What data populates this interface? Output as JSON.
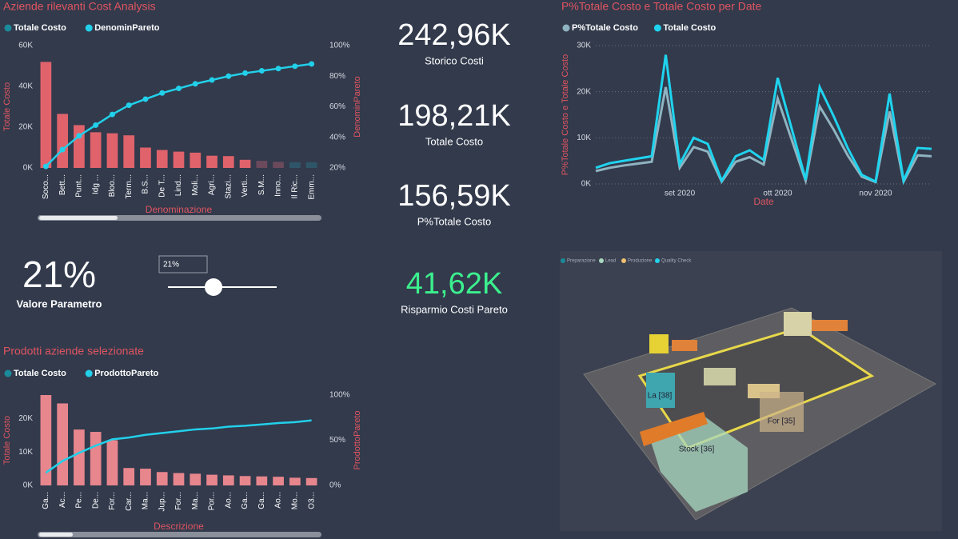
{
  "chart_data": [
    {
      "type": "combo",
      "title": "Aziende rilevanti Cost Analysis",
      "categories": [
        "Soco...",
        "Bett...",
        "Punt...",
        "Idg ...",
        "Bloo...",
        "Term...",
        "B.S...",
        "De T...",
        "Lind...",
        "Moli...",
        "Agri...",
        "Stazi...",
        "Verti...",
        "S.M...",
        "Inno...",
        "Il Ric...",
        "Emm..."
      ],
      "series": [
        {
          "name": "Totale Costo",
          "type": "bar",
          "color": "#1b8a9b",
          "bar_colors": [
            "#e0636b",
            "#e0636b",
            "#e0636b",
            "#e0636b",
            "#e0636b",
            "#e0636b",
            "#e0636b",
            "#e0636b",
            "#e0636b",
            "#e0636b",
            "#e0636b",
            "#e0636b",
            "#e0636b",
            "#6b4a5c",
            "#6b4a5c",
            "#2f5668",
            "#2f5668"
          ],
          "values": [
            52000,
            26500,
            21000,
            17500,
            17000,
            16000,
            10000,
            8800,
            8000,
            7500,
            6000,
            5800,
            4000,
            3500,
            3000,
            2800,
            2800
          ]
        },
        {
          "name": "DenominPareto",
          "type": "line",
          "axis": "y2",
          "color": "#22d0ea",
          "values": [
            21,
            32,
            41,
            48,
            55,
            61,
            65,
            69,
            72,
            75,
            77.5,
            80,
            82,
            83.5,
            85,
            86.5,
            88
          ]
        }
      ],
      "ylim": [
        0,
        60000
      ],
      "yticks": [
        {
          "value": 0,
          "label": "0K"
        },
        {
          "value": 20000,
          "label": "20K"
        },
        {
          "value": 40000,
          "label": "40K"
        },
        {
          "value": 60000,
          "label": "60K"
        }
      ],
      "y2lim": [
        20,
        100
      ],
      "y2ticks": [
        {
          "value": 20,
          "label": "20%"
        },
        {
          "value": 40,
          "label": "40%"
        },
        {
          "value": 60,
          "label": "60%"
        },
        {
          "value": 80,
          "label": "80%"
        },
        {
          "value": 100,
          "label": "100%"
        }
      ],
      "xlabel": "Denominazione",
      "ylabel": "Totale Costo",
      "y2label": "DenominPareto",
      "grid": false,
      "markers": true
    },
    {
      "type": "line",
      "title": "P%Totale Costo e Totale Costo per Date",
      "categories": [
        null,
        null,
        null,
        null,
        null,
        null,
        "set 2020",
        null,
        null,
        null,
        null,
        null,
        null,
        "ott 2020",
        null,
        null,
        null,
        null,
        null,
        null,
        "nov 2020",
        null,
        null,
        null,
        null
      ],
      "series": [
        {
          "name": "P%Totale Costo",
          "color": "#8fb3c0",
          "values": [
            2800,
            3500,
            4000,
            4400,
            4800,
            21000,
            3500,
            8000,
            7000,
            500,
            4800,
            5800,
            4200,
            18500,
            9600,
            700,
            16800,
            11800,
            6200,
            1600,
            400,
            15700,
            500,
            6200,
            6000
          ]
        },
        {
          "name": "Totale Costo",
          "color": "#1fd3ee",
          "values": [
            3500,
            4500,
            5000,
            5500,
            6000,
            28000,
            4300,
            10000,
            8700,
            700,
            6000,
            7300,
            5200,
            23000,
            12000,
            900,
            21000,
            14700,
            7800,
            2000,
            500,
            19600,
            700,
            7800,
            7600
          ]
        }
      ],
      "ylim": [
        0,
        30000
      ],
      "yticks": [
        {
          "value": 0,
          "label": "0K"
        },
        {
          "value": 10000,
          "label": "10K"
        },
        {
          "value": 20000,
          "label": "20K"
        },
        {
          "value": 30000,
          "label": "30K"
        }
      ],
      "xlabel": "Date",
      "ylabel": "P%Totale Costo e Totale Costo",
      "grid": true,
      "markers": false
    },
    {
      "type": "combo",
      "title": "Prodotti aziende selezionate",
      "categories": [
        "Ga...",
        "Ac...",
        "Pe...",
        "De...",
        "For...",
        "Car...",
        "Ma...",
        "Jup...",
        "For...",
        "Ma...",
        "Por...",
        "Ao...",
        "Ga...",
        "Ga...",
        "Ao...",
        "Mo...",
        "O3..."
      ],
      "series": [
        {
          "name": "Totale Costo",
          "type": "bar",
          "color": "#1b8a9b",
          "bar_colors": [
            "#e8868e",
            "#e8868e",
            "#e8868e",
            "#e8868e",
            "#e8868e",
            "#e8868e",
            "#e8868e",
            "#e8868e",
            "#e8868e",
            "#e8868e",
            "#e8868e",
            "#e8868e",
            "#e8868e",
            "#e8868e",
            "#e8868e",
            "#e8868e",
            "#e8868e"
          ],
          "values": [
            27000,
            24500,
            16700,
            16000,
            13500,
            5200,
            5000,
            4000,
            3700,
            3500,
            3200,
            3000,
            2800,
            2700,
            2600,
            2300,
            2200
          ]
        },
        {
          "name": "ProdottoPareto",
          "type": "line",
          "axis": "y2",
          "color": "#22d0ea",
          "values": [
            14,
            27,
            36,
            44,
            51,
            53,
            56,
            58,
            60,
            62,
            63,
            65,
            66,
            67.5,
            69,
            70,
            72
          ]
        }
      ],
      "ylim": [
        0,
        27000
      ],
      "yticks": [
        {
          "value": 0,
          "label": "0K"
        },
        {
          "value": 10000,
          "label": "10K"
        },
        {
          "value": 20000,
          "label": "20K"
        }
      ],
      "y2lim": [
        0,
        100
      ],
      "y2ticks": [
        {
          "value": 0,
          "label": "0%"
        },
        {
          "value": 50,
          "label": "50%"
        },
        {
          "value": 100,
          "label": "100%"
        }
      ],
      "xlabel": "Descrizione",
      "ylabel": "Totale Costo",
      "y2label": "ProdottoPareto",
      "grid": false,
      "markers": false
    }
  ],
  "kpis": [
    {
      "value": "242,96K",
      "label": "Storico Costi",
      "color": "#ffffff"
    },
    {
      "value": "198,21K",
      "label": "Totale Costo",
      "color": "#ffffff"
    },
    {
      "value": "156,59K",
      "label": "P%Totale Costo",
      "color": "#ffffff"
    },
    {
      "value": "41,62K",
      "label": "Risparmio Costi Pareto",
      "color": "#3cf08e"
    }
  ],
  "parameter": {
    "value": "21%",
    "label": "Valore Parametro",
    "input": "21%"
  },
  "floor_plan": {
    "legend": [
      "Preparazione",
      "Lead",
      "Produzione",
      "Quality Check"
    ],
    "labels": [
      "La [38]",
      "For [35]",
      "Stock [36]"
    ]
  }
}
